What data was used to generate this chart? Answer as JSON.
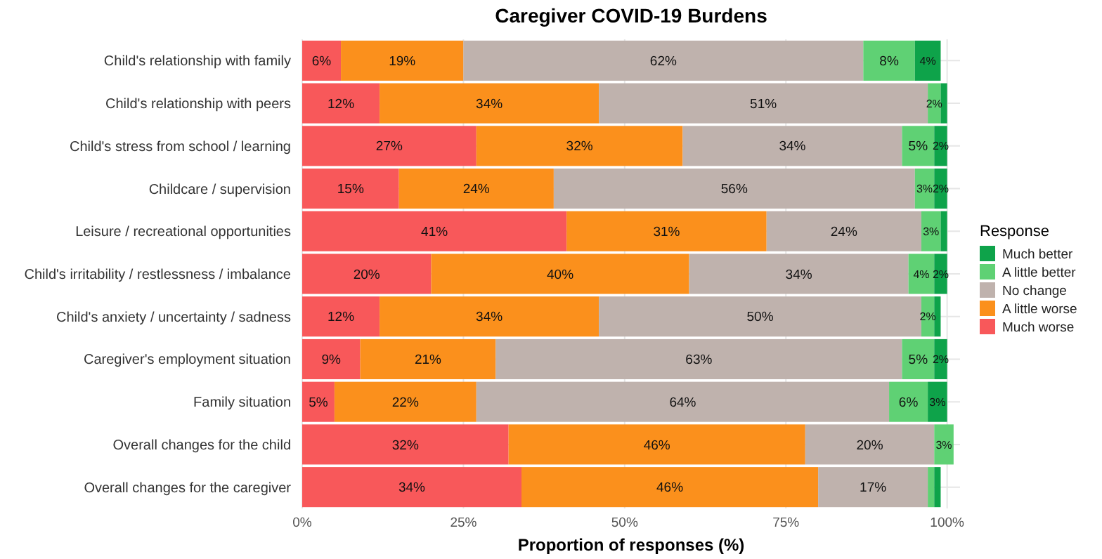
{
  "chart_data": {
    "type": "bar",
    "orientation": "horizontal",
    "stacked": true,
    "title": "Caregiver COVID-19 Burdens",
    "xlabel": "Proportion of responses (%)",
    "legend_title": "Response",
    "legend": "right",
    "grid": true,
    "categories": [
      "Child's relationship with family",
      "Child's relationship with peers",
      "Child's stress from school / learning",
      "Childcare / supervision",
      "Leisure / recreational opportunities",
      "Child's irritability / restlessness / imbalance",
      "Child's anxiety / uncertainty / sadness",
      "Caregiver's employment situation",
      "Family situation",
      "Overall changes for the child",
      "Overall changes for the caregiver"
    ],
    "xlim": [
      0,
      102
    ],
    "xticks": [
      {
        "value": 0,
        "label": "0%"
      },
      {
        "value": 25,
        "label": "25%"
      },
      {
        "value": 50,
        "label": "50%"
      },
      {
        "value": 75,
        "label": "75%"
      },
      {
        "value": 100,
        "label": "100%"
      }
    ],
    "series": [
      {
        "name": "Much worse",
        "color": "#f8585a",
        "values": [
          6,
          12,
          27,
          15,
          41,
          20,
          12,
          9,
          5,
          32,
          34
        ],
        "value_labels": [
          "6%",
          "12%",
          "27%",
          "15%",
          "41%",
          "20%",
          "12%",
          "9%",
          "5%",
          "32%",
          "34%"
        ]
      },
      {
        "name": "A little worse",
        "color": "#fb901c",
        "values": [
          19,
          34,
          32,
          24,
          31,
          40,
          34,
          21,
          22,
          46,
          46
        ],
        "value_labels": [
          "19%",
          "34%",
          "32%",
          "24%",
          "31%",
          "40%",
          "34%",
          "21%",
          "22%",
          "46%",
          "46%"
        ]
      },
      {
        "name": "No change",
        "color": "#bfb2ad",
        "values": [
          62,
          51,
          34,
          56,
          24,
          34,
          50,
          63,
          64,
          20,
          17
        ],
        "value_labels": [
          "62%",
          "51%",
          "34%",
          "56%",
          "24%",
          "34%",
          "50%",
          "63%",
          "64%",
          "20%",
          "17%"
        ]
      },
      {
        "name": "A little better",
        "color": "#5fd174",
        "values": [
          8,
          2,
          5,
          3,
          3,
          4,
          2,
          5,
          6,
          3,
          1
        ],
        "value_labels": [
          "8%",
          "2%",
          "5%",
          "3%",
          "3%",
          "4%",
          "2%",
          "5%",
          "6%",
          "3%",
          null
        ]
      },
      {
        "name": "Much better",
        "color": "#0ea34a",
        "values": [
          4,
          1,
          2,
          2,
          1,
          2,
          1,
          2,
          3,
          0,
          1
        ],
        "value_labels": [
          "4%",
          null,
          "2%",
          "2%",
          null,
          "2%",
          null,
          "2%",
          "3%",
          null,
          null
        ]
      }
    ]
  }
}
